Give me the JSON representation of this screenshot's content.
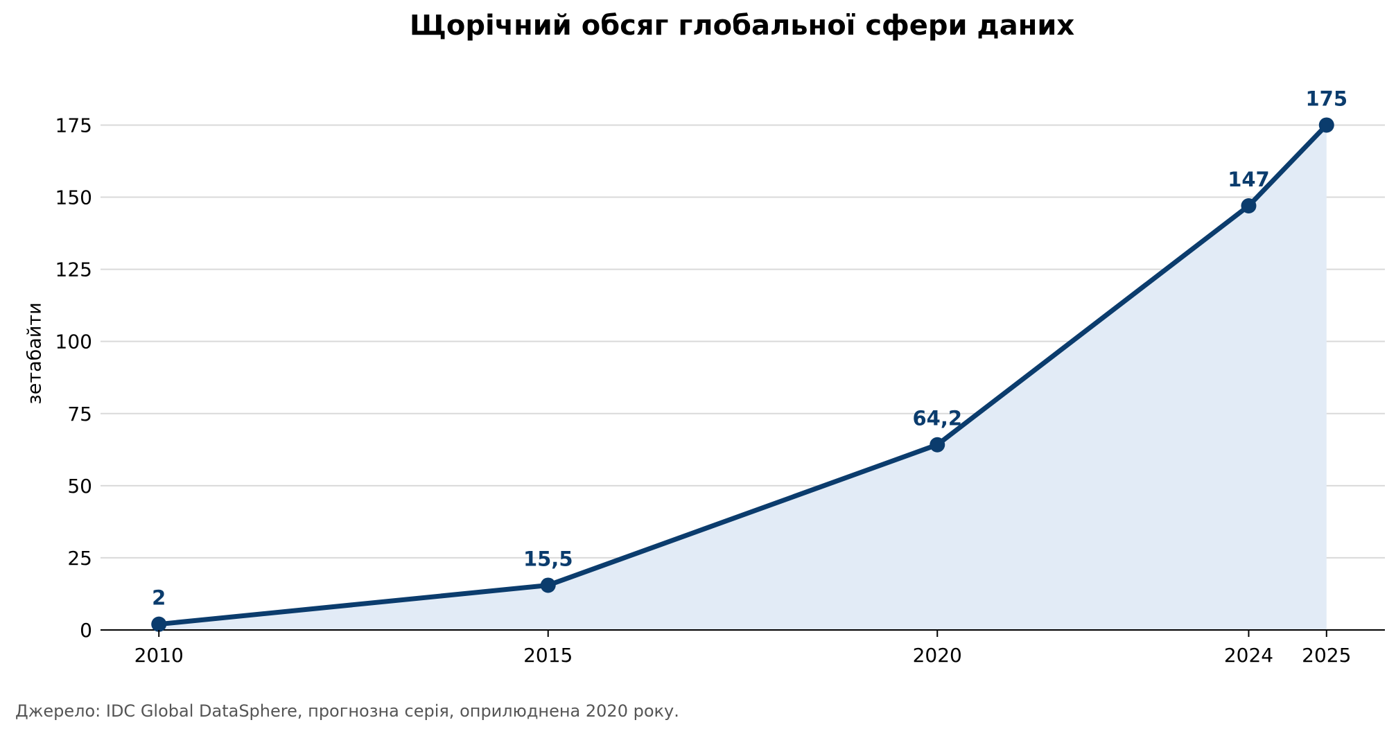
{
  "chart_data": {
    "type": "area",
    "title": "Щорічний обсяг глобальної сфери даних",
    "xlabel": "",
    "ylabel": "зетабайти",
    "x": [
      2010,
      2015,
      2020,
      2024,
      2025
    ],
    "x_tick_labels": [
      "2010",
      "2015",
      "2020",
      "2024",
      "2025"
    ],
    "values": [
      2,
      15.5,
      64.2,
      147,
      175
    ],
    "data_labels": [
      "2",
      "15,5",
      "64,2",
      "147",
      "175"
    ],
    "ylim": [
      0,
      190
    ],
    "xlim": [
      2009.25,
      2025.75
    ],
    "y_ticks": [
      0,
      25,
      50,
      75,
      100,
      125,
      150,
      175
    ],
    "y_tick_labels": [
      "0",
      "25",
      "50",
      "75",
      "100",
      "125",
      "150",
      "175"
    ],
    "grid": "horizontal",
    "markers": true,
    "colors": {
      "line": "#0b3c6d",
      "fill": "#e2ebf6",
      "grid": "#d9d9d9",
      "axis": "#000000",
      "label": "#0b3c6d"
    }
  },
  "source_note": "Джерело: IDC Global DataSphere, прогнозна серія, оприлюднена 2020 року."
}
